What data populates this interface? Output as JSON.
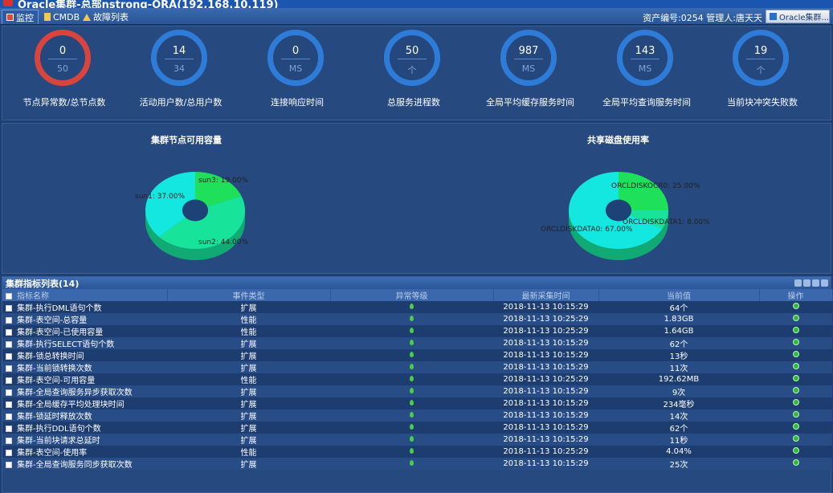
{
  "window": {
    "title": "Oracle集群-总部nstrong-ORA(192.168.10.119)"
  },
  "tabs": [
    {
      "label": "监控",
      "icon": "monitor-icon",
      "active": true
    },
    {
      "label": "CMDB",
      "icon": "cmdb-icon",
      "active": false
    },
    {
      "label": "故障列表",
      "icon": "warning-icon",
      "active": false
    }
  ],
  "header_info": "资产编号:0254  管理人:唐天天",
  "system_button": "Oracle集群...",
  "gauges": [
    {
      "value": "0",
      "sub": "50",
      "label": "节点异常数/总节点数",
      "alert": true
    },
    {
      "value": "14",
      "sub": "34",
      "label": "活动用户数/总用户数",
      "alert": false
    },
    {
      "value": "0",
      "sub": "MS",
      "label": "连接响应时间",
      "alert": false
    },
    {
      "value": "50",
      "sub": "个",
      "label": "总服务进程数",
      "alert": false
    },
    {
      "value": "987",
      "sub": "MS",
      "label": "全局平均缓存服务时间",
      "alert": false
    },
    {
      "value": "143",
      "sub": "MS",
      "label": "全局平均查询服务时间",
      "alert": false
    },
    {
      "value": "19",
      "sub": "个",
      "label": "当前块冲突失败数",
      "alert": false
    }
  ],
  "chart_data": [
    {
      "type": "pie",
      "title": "集群节点可用容量",
      "slices": [
        {
          "name": "sun3",
          "value": 19.0,
          "label": "sun3: 19.00%",
          "color": "#1fe05a"
        },
        {
          "name": "sun2",
          "value": 44.0,
          "label": "sun2: 44.00%",
          "color": "#17e39a"
        },
        {
          "name": "sun1",
          "value": 37.0,
          "label": "sun1: 37.00%",
          "color": "#14e6e0"
        }
      ]
    },
    {
      "type": "pie",
      "title": "共享磁盘使用率",
      "slices": [
        {
          "name": "ORCLDISKOCR0",
          "value": 25.0,
          "label": "ORCLDISKOCR0: 25.00%",
          "color": "#1fe05a"
        },
        {
          "name": "ORCLDISKDATA1",
          "value": 8.0,
          "label": "ORCLDISKDATA1: 8.00%",
          "color": "#17e39a"
        },
        {
          "name": "ORCLDISKDATA0",
          "value": 67.0,
          "label": "ORCLDISKDATA0: 67.00%",
          "color": "#14e6e0"
        }
      ]
    }
  ],
  "table": {
    "title": "集群指标列表(14)",
    "columns": [
      "指标名称",
      "事件类型",
      "异常等级",
      "最新采集时间",
      "当前值",
      "操作"
    ],
    "rows": [
      {
        "name": "集群-执行DML语句个数",
        "type": "扩展",
        "time": "2018-11-13 10:15:29",
        "value": "64个"
      },
      {
        "name": "集群-表空间-总容量",
        "type": "性能",
        "time": "2018-11-13 10:25:29",
        "value": "1.83GB"
      },
      {
        "name": "集群-表空间-已使用容量",
        "type": "性能",
        "time": "2018-11-13 10:25:29",
        "value": "1.64GB"
      },
      {
        "name": "集群-执行SELECT语句个数",
        "type": "扩展",
        "time": "2018-11-13 10:15:29",
        "value": "62个"
      },
      {
        "name": "集群-锁总转换时间",
        "type": "扩展",
        "time": "2018-11-13 10:15:29",
        "value": "13秒"
      },
      {
        "name": "集群-当前锁转换次数",
        "type": "扩展",
        "time": "2018-11-13 10:15:29",
        "value": "11次"
      },
      {
        "name": "集群-表空间-可用容量",
        "type": "性能",
        "time": "2018-11-13 10:25:29",
        "value": "192.62MB"
      },
      {
        "name": "集群-全局查询服务异步获取次数",
        "type": "扩展",
        "time": "2018-11-13 10:15:29",
        "value": "9次"
      },
      {
        "name": "集群-全局缓存平均处理块时间",
        "type": "扩展",
        "time": "2018-11-13 10:15:29",
        "value": "234毫秒"
      },
      {
        "name": "集群-锁延时释放次数",
        "type": "扩展",
        "time": "2018-11-13 10:15:29",
        "value": "14次"
      },
      {
        "name": "集群-执行DDL语句个数",
        "type": "扩展",
        "time": "2018-11-13 10:15:29",
        "value": "62个"
      },
      {
        "name": "集群-当前块请求总延时",
        "type": "扩展",
        "time": "2018-11-13 10:15:29",
        "value": "11秒"
      },
      {
        "name": "集群-表空间-使用率",
        "type": "性能",
        "time": "2018-11-13 10:25:29",
        "value": "4.04%"
      },
      {
        "name": "集群-全局查询服务同步获取次数",
        "type": "扩展",
        "time": "2018-11-13 10:15:29",
        "value": "25次"
      }
    ]
  }
}
